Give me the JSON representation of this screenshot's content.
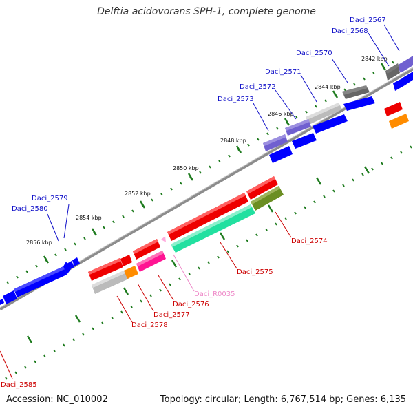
{
  "title": "Delftia acidovorans SPH-1, complete genome",
  "footer": {
    "accession": "Accession: NC_010002",
    "summary": "Topology: circular; Length: 6,767,514 bp; Genes: 6,135"
  },
  "colors": {
    "backbone": "#8c8c8c",
    "tick": "#1e7b1e",
    "blue_label": "#1010c8",
    "red_label": "#cc0000",
    "pink_label": "#ee88c8"
  },
  "ticks": [
    "2842 kbp",
    "2844 kbp",
    "2846 kbp",
    "2848 kbp",
    "2850 kbp",
    "2852 kbp",
    "2854 kbp",
    "2856 kbp"
  ],
  "genes": {
    "g2567": {
      "name": "Daci_2567",
      "color": "#7060d0"
    },
    "g2568": {
      "name": "Daci_2568",
      "color": "#666666"
    },
    "g2570": {
      "name": "Daci_2570",
      "color": "#666666"
    },
    "g2571": {
      "name": "Daci_2571",
      "color": "#bbbbbb"
    },
    "g2572": {
      "name": "Daci_2572",
      "color": "#7060d0"
    },
    "g2573": {
      "name": "Daci_2573",
      "color": "#7060d0"
    },
    "g2574": {
      "name": "Daci_2574",
      "color": "#6b8e23"
    },
    "g2575": {
      "name": "Daci_2575",
      "color": "#22e0a0"
    },
    "g2576": {
      "name": "Daci_2576",
      "color": "#ff1493"
    },
    "g2577": {
      "name": "Daci_2577",
      "color": "#ff8c00"
    },
    "g2578": {
      "name": "Daci_2578",
      "color": "#bbbbbb"
    },
    "g2579": {
      "name": "Daci_2579",
      "color": "#0000ff"
    },
    "g2580": {
      "name": "Daci_2580",
      "color": "#0000ff"
    },
    "g2585": {
      "name": "Daci_2585",
      "color": "#dd0000"
    },
    "R0035": {
      "name": "Daci_R0035",
      "color": "#ffaadd"
    }
  }
}
